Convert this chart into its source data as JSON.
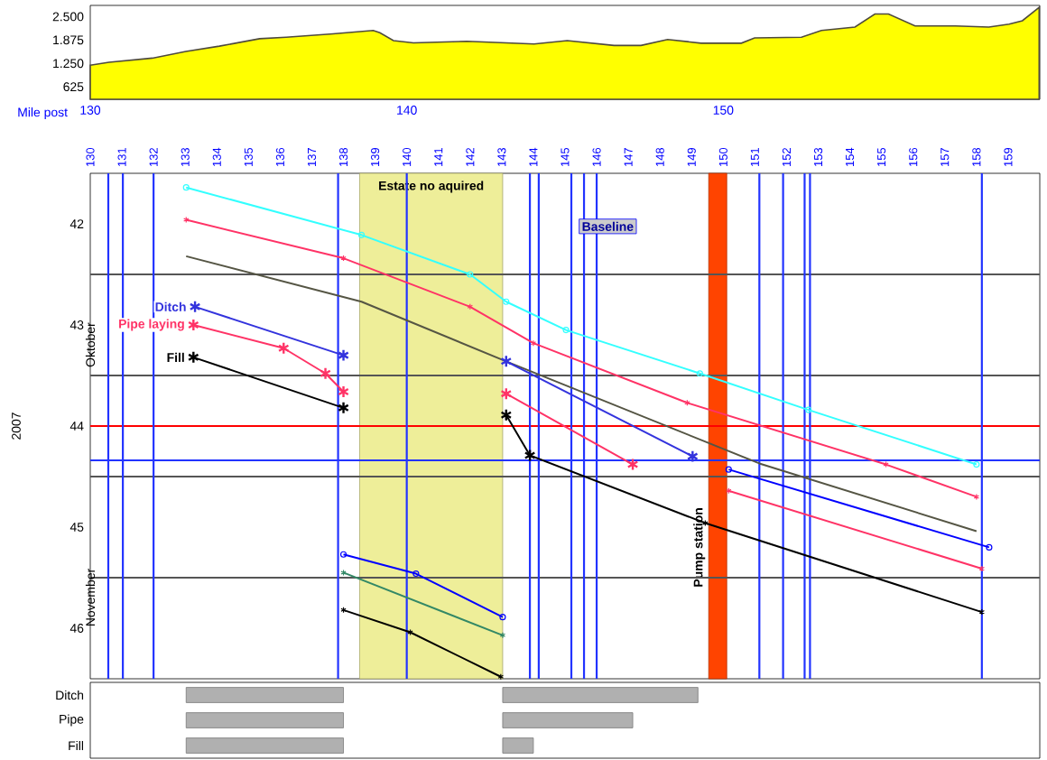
{
  "chart_data": [
    {
      "type": "area",
      "xlabel": "Mile post",
      "xlim": [
        130,
        160
      ],
      "xticks": [
        130,
        140,
        150
      ],
      "ylim": [
        290,
        2800
      ],
      "yticks": [
        625,
        {
          "value": 1250,
          "label": "1.250"
        },
        {
          "value": 1875,
          "label": "1.875"
        },
        {
          "value": 2500,
          "label": "2.500"
        }
      ],
      "series": [
        {
          "color": "#ffff00",
          "x": [
            130,
            130.59,
            131.96,
            133.02,
            134.08,
            135.35,
            136.19,
            137.67,
            138.94,
            139.15,
            139.58,
            140.21,
            141.9,
            144.02,
            145.07,
            146.55,
            147.4,
            148.24,
            149.3,
            150.57,
            150.99,
            152.47,
            153.1,
            154.16,
            154.79,
            155.22,
            156.06,
            157.33,
            158.39,
            159.03,
            159.45,
            159.98
          ],
          "values": [
            1200,
            1280,
            1390,
            1570,
            1710,
            1910,
            1950,
            2040,
            2130,
            2070,
            1860,
            1800,
            1840,
            1770,
            1860,
            1730,
            1730,
            1890,
            1790,
            1790,
            1930,
            1950,
            2130,
            2220,
            2570,
            2570,
            2250,
            2250,
            2220,
            2300,
            2390,
            2750
          ]
        }
      ]
    },
    {
      "type": "line",
      "ylabel": "2007",
      "xlim": [
        130,
        160
      ],
      "ylim": [
        46.5,
        41.5
      ],
      "xticks": [
        130,
        131,
        132,
        133,
        134,
        135,
        136,
        137,
        138,
        139,
        140,
        141,
        142,
        143,
        144,
        145,
        146,
        147,
        148,
        149,
        150,
        151,
        152,
        153,
        154,
        155,
        156,
        157,
        158,
        159
      ],
      "yticks": [
        42,
        43,
        44,
        45,
        46
      ],
      "legend": false,
      "series": [
        {
          "color": "#33ffff",
          "marker": "circle",
          "x": [
            133.03,
            138.57,
            142.0,
            143.14,
            145.03,
            149.26,
            152.69,
            158.0
          ],
          "values": [
            41.64,
            42.11,
            42.5,
            42.77,
            43.05,
            43.48,
            43.84,
            44.38
          ]
        },
        {
          "color": "#ff3366",
          "marker": "cross",
          "x": [
            133.03,
            138.0,
            142.0,
            144.0,
            148.86,
            155.14,
            158.0
          ],
          "values": [
            41.96,
            42.34,
            42.82,
            43.18,
            43.77,
            44.38,
            44.7
          ]
        },
        {
          "color": "#555544",
          "marker": "none",
          "x": [
            133.03,
            138.57,
            143.14,
            151.14,
            158.0
          ],
          "values": [
            42.32,
            42.77,
            43.36,
            44.37,
            45.04
          ]
        },
        {
          "name": "Ditch",
          "color": "#3333dd",
          "marker": "cross",
          "x": [
            133.31,
            138.0,
            null,
            143.14,
            149.03
          ],
          "values": [
            42.82,
            43.3,
            null,
            43.36,
            44.3
          ]
        },
        {
          "name": "Pipe laying",
          "color": "#ff3366",
          "marker": "cross",
          "x": [
            133.26,
            136.11,
            137.43,
            138.0,
            null,
            143.14,
            147.14
          ],
          "values": [
            43.0,
            43.23,
            43.48,
            43.66,
            null,
            43.68,
            44.38
          ]
        },
        {
          "name": "Fill",
          "color": "#000000",
          "marker": "cross",
          "x": [
            133.26,
            138.0,
            null,
            143.14,
            143.89
          ],
          "values": [
            43.32,
            43.82,
            null,
            43.89,
            44.29
          ]
        },
        {
          "color": "#000000",
          "marker": "cross",
          "x": [
            138.0,
            140.11,
            142.97,
            null,
            143.89,
            149.43,
            158.17
          ],
          "values": [
            45.82,
            46.04,
            46.48,
            null,
            44.29,
            44.96,
            45.84
          ]
        },
        {
          "color": "#0000ff",
          "marker": "circle",
          "x": [
            138.0,
            140.29,
            143.03,
            null,
            150.17,
            158.4
          ],
          "values": [
            45.27,
            45.46,
            45.89,
            null,
            44.43,
            45.2
          ]
        },
        {
          "color": "#ff3366",
          "marker": "cross",
          "x": [
            150.17,
            158.17
          ],
          "values": [
            44.64,
            45.41
          ]
        },
        {
          "color": "#338866",
          "marker": "cross",
          "x": [
            138.0,
            143.03
          ],
          "values": [
            45.45,
            46.07
          ]
        }
      ],
      "ref_lines": [
        {
          "axis": "y",
          "value": 42.5,
          "color": "#555555"
        },
        {
          "axis": "y",
          "value": 43.5,
          "color": "#555555"
        },
        {
          "axis": "y",
          "value": 44.5,
          "color": "#555555"
        },
        {
          "axis": "y",
          "value": 45.5,
          "color": "#555555"
        },
        {
          "axis": "y",
          "value": 44.0,
          "color": "#ff0000"
        },
        {
          "axis": "y",
          "value": 44.34,
          "color": "#2233ff"
        },
        {
          "axis": "x",
          "value": 130.57,
          "color": "#2233ff"
        },
        {
          "axis": "x",
          "value": 131.03,
          "color": "#2233ff"
        },
        {
          "axis": "x",
          "value": 132.0,
          "color": "#2233ff"
        },
        {
          "axis": "x",
          "value": 137.83,
          "color": "#2233ff"
        },
        {
          "axis": "x",
          "value": 140.0,
          "color": "#2233ff"
        },
        {
          "axis": "x",
          "value": 143.89,
          "color": "#2233ff"
        },
        {
          "axis": "x",
          "value": 144.17,
          "color": "#2233ff"
        },
        {
          "axis": "x",
          "value": 145.2,
          "color": "#2233ff"
        },
        {
          "axis": "x",
          "value": 145.6,
          "color": "#2233ff"
        },
        {
          "axis": "x",
          "value": 146.0,
          "color": "#2233ff"
        },
        {
          "axis": "x",
          "value": 151.14,
          "color": "#2233ff"
        },
        {
          "axis": "x",
          "value": 151.89,
          "color": "#2233ff"
        },
        {
          "axis": "x",
          "value": 152.57,
          "color": "#2233ff"
        },
        {
          "axis": "x",
          "value": 152.74,
          "color": "#2233ff"
        },
        {
          "axis": "x",
          "value": 158.17,
          "color": "#2233ff"
        }
      ],
      "bands": [
        {
          "axis": "x",
          "from": 138.51,
          "to": 143.03,
          "label": "Estate no aquired",
          "color": "#eeee99"
        },
        {
          "axis": "x",
          "from": 149.54,
          "to": 150.11,
          "label": "Pump station",
          "color": "#ff4400"
        }
      ],
      "annotations": [
        "Baseline",
        "Oktober",
        "November"
      ]
    },
    {
      "type": "bar",
      "orientation": "horizontal",
      "categories": [
        "Ditch",
        "Pipe",
        "Fill"
      ],
      "xlim": [
        130,
        160
      ],
      "tick_labels": "y",
      "series": [
        {
          "color": "#b0b0b0",
          "base": [
            133.03,
            133.03,
            133.03
          ],
          "values": [
            4.97,
            4.97,
            4.97
          ]
        },
        {
          "color": "#b0b0b0",
          "base": [
            143.03,
            143.03,
            143.03
          ],
          "values": [
            6.17,
            4.11,
            0.97
          ]
        }
      ]
    }
  ]
}
